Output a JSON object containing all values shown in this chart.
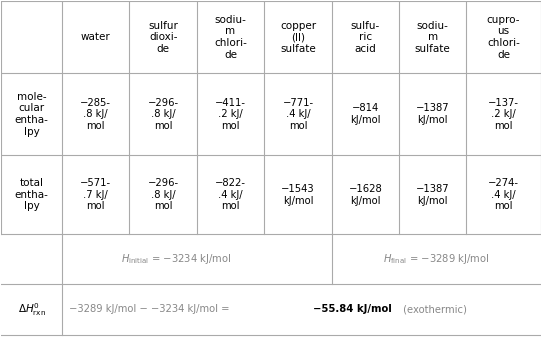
{
  "col_headers": [
    "",
    "water",
    "sulfur\ndioxi-\nde",
    "sodiu-\nm\nchlori-\nde",
    "copper\n(II)\nsulfate",
    "sulfu-\nric\nacid",
    "sodiu-\nm\nsulfate",
    "cupro-\nus\nchlori-\nde"
  ],
  "mol_vals": [
    "−285-\n.8 kJ/\nmol",
    "−296-\n.8 kJ/\nmol",
    "−411-\n.2 kJ/\nmol",
    "−771-\n.4 kJ/\nmol",
    "−814\nkJ/mol",
    "−1387\nkJ/mol",
    "−137-\n.2 kJ/\nmol"
  ],
  "tot_vals": [
    "−571-\n.7 kJ/\nmol",
    "−296-\n.8 kJ/\nmol",
    "−822-\n.4 kJ/\nmol",
    "−1543\nkJ/mol",
    "−1628\nkJ/mol",
    "−1387\nkJ/mol",
    "−274-\n.4 kJ/\nmol"
  ],
  "row0_label": "",
  "row1_label": "mole-\ncular\nentha-\nlpy",
  "row2_label": "total\nentha-\nlpy",
  "row3_label": "",
  "row4_label": "",
  "h_initial_text": " = −3234 kJ/mol",
  "h_final_text": " = −3289 kJ/mol",
  "delta_eq_prefix": "−3289 kJ/mol − −3234 kJ/mol = ",
  "delta_eq_bold": "−55.84 kJ/mol",
  "delta_eq_suffix": " (exothermic)",
  "bg_color": "#ffffff",
  "text_color": "#000000",
  "gray_color": "#888888",
  "grid_color": "#aaaaaa"
}
